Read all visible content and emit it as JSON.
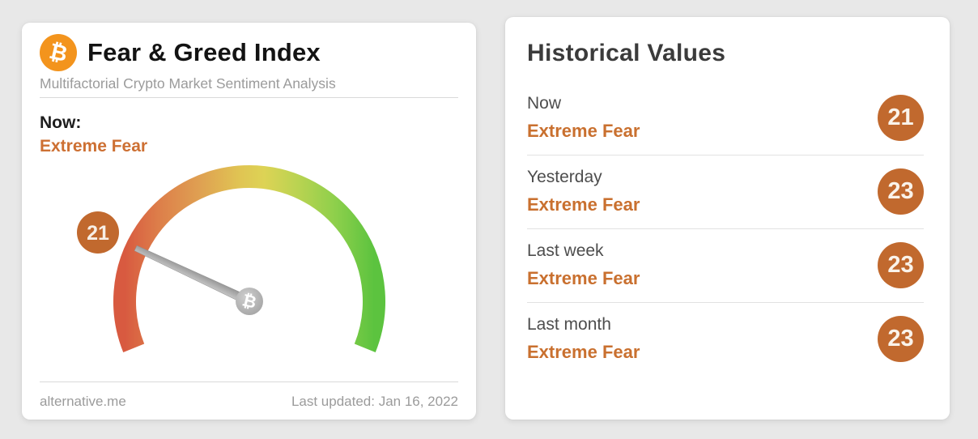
{
  "icons": {
    "bitcoin": "₿"
  },
  "colors": {
    "page_background": "#e8e8e8",
    "accent_orange_text": "#cd7033",
    "badge_orange": "#c1692e",
    "bitcoin_logo_orange": "#f3941d",
    "gauge_red": "#d85a40",
    "gauge_orange": "#dfa052",
    "gauge_yellow": "#ddd355",
    "gauge_green": "#5cc33f",
    "needle_gray": "#ababab"
  },
  "fear_greed_card": {
    "title": "Fear & Greed Index",
    "subtitle": "Multifactorial Crypto Market Sentiment Analysis",
    "now_label": "Now:",
    "now_sentiment": "Extreme Fear",
    "source": "alternative.me",
    "last_updated": "Last updated: Jan 16, 2022"
  },
  "gauge": {
    "type": "gauge",
    "value": 21,
    "label": "21",
    "min": 0,
    "max": 100,
    "start_angle_deg": 202,
    "sweep_deg": 224,
    "sentiment": "Extreme Fear"
  },
  "historical_card": {
    "title": "Historical Values",
    "rows": [
      {
        "label": "Now",
        "sentiment": "Extreme Fear",
        "value": "21"
      },
      {
        "label": "Yesterday",
        "sentiment": "Extreme Fear",
        "value": "23"
      },
      {
        "label": "Last week",
        "sentiment": "Extreme Fear",
        "value": "23"
      },
      {
        "label": "Last month",
        "sentiment": "Extreme Fear",
        "value": "23"
      }
    ]
  }
}
